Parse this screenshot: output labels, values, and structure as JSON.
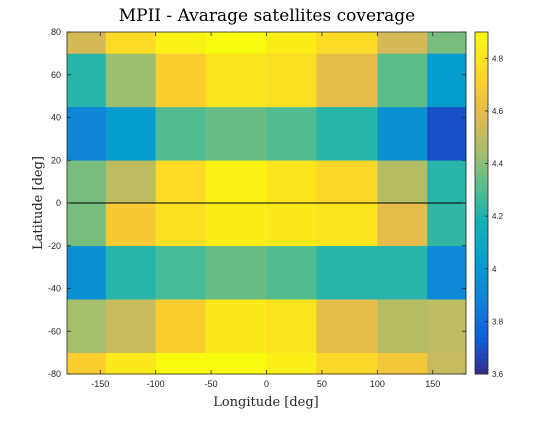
{
  "chart_data": {
    "type": "heatmap",
    "title": "MPII - Avarage satellites coverage",
    "xlabel": "Longitude [deg]",
    "ylabel": "Latitude [deg]",
    "xlim": [
      -180,
      180
    ],
    "ylim": [
      -80,
      80
    ],
    "x_ticks": [
      -150,
      -100,
      -50,
      0,
      50,
      100,
      150
    ],
    "y_ticks": [
      -80,
      -60,
      -40,
      -20,
      0,
      20,
      40,
      60,
      80
    ],
    "x_edges": [
      -180,
      -145,
      -100,
      -55,
      0,
      45,
      100,
      145,
      180
    ],
    "y_edges": [
      -80,
      -70,
      -45,
      -20,
      0,
      20,
      45,
      70,
      80
    ],
    "zero_line": 0,
    "rows": [
      {
        "lat_from": -80,
        "lat_to": -70,
        "values": [
          4.7,
          4.82,
          4.9,
          4.92,
          4.85,
          4.75,
          4.66,
          4.52
        ]
      },
      {
        "lat_from": -70,
        "lat_to": -45,
        "values": [
          4.45,
          4.52,
          4.7,
          4.82,
          4.8,
          4.6,
          4.48,
          4.5
        ]
      },
      {
        "lat_from": -45,
        "lat_to": -20,
        "values": [
          3.95,
          4.22,
          4.28,
          4.34,
          4.3,
          4.22,
          4.22,
          3.92
        ]
      },
      {
        "lat_from": -20,
        "lat_to": 0,
        "values": [
          4.37,
          4.68,
          4.78,
          4.84,
          4.82,
          4.8,
          4.6,
          4.24
        ]
      },
      {
        "lat_from": 0,
        "lat_to": 20,
        "values": [
          4.37,
          4.5,
          4.76,
          4.86,
          4.8,
          4.75,
          4.48,
          4.22
        ]
      },
      {
        "lat_from": 20,
        "lat_to": 45,
        "values": [
          3.9,
          4.02,
          4.3,
          4.34,
          4.3,
          4.22,
          3.96,
          3.7
        ]
      },
      {
        "lat_from": 45,
        "lat_to": 70,
        "values": [
          4.22,
          4.43,
          4.7,
          4.8,
          4.78,
          4.6,
          4.32,
          4.02
        ]
      },
      {
        "lat_from": 70,
        "lat_to": 80,
        "values": [
          4.55,
          4.76,
          4.86,
          4.92,
          4.84,
          4.76,
          4.55,
          4.37
        ]
      }
    ],
    "colorbar": {
      "colormap": "parula",
      "range": [
        3.6,
        4.9
      ],
      "ticks": [
        3.6,
        3.8,
        4,
        4.2,
        4.4,
        4.6,
        4.8
      ]
    },
    "grid": false
  }
}
